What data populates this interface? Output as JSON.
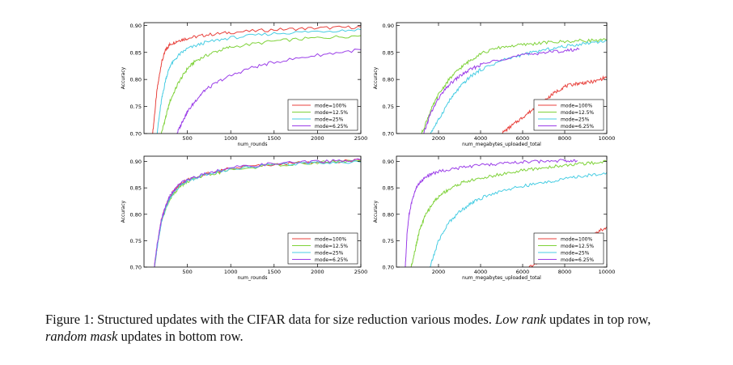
{
  "figure": {
    "caption_prefix": "Figure 1: Structured updates with the CIFAR data for size reduction various modes.",
    "caption_low_rank": "Low rank",
    "caption_mid": "updates in top row,",
    "caption_random_mask": "random mask",
    "caption_suffix": "updates in bottom row."
  },
  "chart_data": [
    {
      "type": "line",
      "xlabel": "num_rounds",
      "ylabel": "Accuracy",
      "xlim": [
        0,
        2500
      ],
      "ylim": [
        0.7,
        0.905
      ],
      "xticks": [
        500,
        1000,
        1500,
        2000,
        2500
      ],
      "yticks": [
        0.7,
        0.75,
        0.8,
        0.85,
        0.9
      ],
      "ytick_labels": [
        "0.70",
        "0.75",
        "0.80",
        "0.85",
        "0.90"
      ],
      "legend_position": "lower-right",
      "series": [
        {
          "name": "mode=100%",
          "color": "#e8423d",
          "x": [
            100,
            150,
            200,
            250,
            300,
            400,
            500,
            700,
            1000,
            1500,
            2000,
            2500
          ],
          "y": [
            0.7,
            0.78,
            0.83,
            0.855,
            0.865,
            0.872,
            0.876,
            0.882,
            0.887,
            0.892,
            0.895,
            0.897
          ]
        },
        {
          "name": "mode=12.5%",
          "color": "#7fd23a",
          "x": [
            200,
            250,
            300,
            400,
            500,
            600,
            800,
            1000,
            1500,
            2000,
            2500
          ],
          "y": [
            0.7,
            0.73,
            0.76,
            0.795,
            0.82,
            0.835,
            0.85,
            0.86,
            0.871,
            0.877,
            0.881
          ]
        },
        {
          "name": "mode=25%",
          "color": "#48cde3",
          "x": [
            150,
            200,
            250,
            300,
            400,
            500,
            700,
            1000,
            1500,
            2000,
            2500
          ],
          "y": [
            0.7,
            0.76,
            0.8,
            0.825,
            0.845,
            0.857,
            0.868,
            0.877,
            0.885,
            0.889,
            0.892
          ]
        },
        {
          "name": "mode=6.25%",
          "color": "#9b3ee8",
          "x": [
            380,
            450,
            500,
            600,
            700,
            900,
            1200,
            1500,
            2000,
            2500
          ],
          "y": [
            0.7,
            0.725,
            0.74,
            0.762,
            0.78,
            0.8,
            0.82,
            0.832,
            0.845,
            0.855
          ]
        }
      ]
    },
    {
      "type": "line",
      "xlabel": "num_megabytes_uploaded_total",
      "ylabel": "Accuracy",
      "xlim": [
        0,
        10000
      ],
      "ylim": [
        0.7,
        0.905
      ],
      "xticks": [
        2000,
        4000,
        6000,
        8000,
        10000
      ],
      "yticks": [
        0.7,
        0.75,
        0.8,
        0.85,
        0.9
      ],
      "ytick_labels": [
        "0.70",
        "0.75",
        "0.80",
        "0.85",
        "0.90"
      ],
      "legend_position": "lower-right",
      "series": [
        {
          "name": "mode=100%",
          "color": "#e8423d",
          "x": [
            5000,
            5500,
            6000,
            6500,
            7000,
            7500,
            8000,
            8500,
            9000,
            9500,
            10000
          ],
          "y": [
            0.7,
            0.715,
            0.73,
            0.745,
            0.76,
            0.775,
            0.787,
            0.792,
            0.794,
            0.797,
            0.805
          ]
        },
        {
          "name": "mode=12.5%",
          "color": "#7fd23a",
          "x": [
            1200,
            1600,
            2000,
            2500,
            3000,
            3500,
            4000,
            5000,
            6000,
            7000,
            8000,
            9000,
            10000
          ],
          "y": [
            0.7,
            0.74,
            0.772,
            0.8,
            0.82,
            0.835,
            0.848,
            0.86,
            0.864,
            0.868,
            0.87,
            0.872,
            0.873
          ]
        },
        {
          "name": "mode=25%",
          "color": "#48cde3",
          "x": [
            1600,
            2000,
            2500,
            3000,
            3500,
            4000,
            5000,
            6000,
            7000,
            8000,
            9000,
            10000
          ],
          "y": [
            0.7,
            0.725,
            0.76,
            0.785,
            0.805,
            0.818,
            0.835,
            0.846,
            0.854,
            0.861,
            0.867,
            0.872
          ]
        },
        {
          "name": "mode=6.25%",
          "color": "#9b3ee8",
          "x": [
            1300,
            1600,
            2000,
            2500,
            3000,
            3500,
            4000,
            5000,
            6000,
            7000,
            8000,
            8700
          ],
          "y": [
            0.7,
            0.735,
            0.765,
            0.79,
            0.806,
            0.818,
            0.827,
            0.838,
            0.845,
            0.85,
            0.853,
            0.856
          ]
        }
      ]
    },
    {
      "type": "line",
      "xlabel": "num_rounds",
      "ylabel": "Accuracy",
      "xlim": [
        0,
        2500
      ],
      "ylim": [
        0.7,
        0.91
      ],
      "xticks": [
        500,
        1000,
        1500,
        2000,
        2500
      ],
      "yticks": [
        0.7,
        0.75,
        0.8,
        0.85,
        0.9
      ],
      "ytick_labels": [
        "0.70",
        "0.75",
        "0.80",
        "0.85",
        "0.90"
      ],
      "legend_position": "lower-right",
      "series": [
        {
          "name": "mode=100%",
          "color": "#e8423d",
          "x": [
            120,
            150,
            200,
            250,
            300,
            400,
            500,
            700,
            1000,
            1500,
            2000,
            2500
          ],
          "y": [
            0.7,
            0.74,
            0.79,
            0.815,
            0.835,
            0.855,
            0.865,
            0.876,
            0.887,
            0.895,
            0.899,
            0.902
          ]
        },
        {
          "name": "mode=12.5%",
          "color": "#7fd23a",
          "x": [
            120,
            150,
            200,
            250,
            300,
            400,
            500,
            700,
            1000,
            1500,
            2000,
            2500
          ],
          "y": [
            0.7,
            0.735,
            0.785,
            0.81,
            0.83,
            0.85,
            0.862,
            0.873,
            0.884,
            0.893,
            0.898,
            0.902
          ]
        },
        {
          "name": "mode=25%",
          "color": "#48cde3",
          "x": [
            120,
            150,
            200,
            250,
            300,
            400,
            500,
            700,
            1000,
            1500,
            2000,
            2500
          ],
          "y": [
            0.7,
            0.735,
            0.785,
            0.812,
            0.832,
            0.852,
            0.863,
            0.875,
            0.886,
            0.894,
            0.898,
            0.899
          ]
        },
        {
          "name": "mode=6.25%",
          "color": "#9b3ee8",
          "x": [
            120,
            150,
            200,
            250,
            300,
            400,
            500,
            700,
            1000,
            1500,
            2000,
            2500
          ],
          "y": [
            0.7,
            0.74,
            0.79,
            0.815,
            0.835,
            0.856,
            0.866,
            0.877,
            0.888,
            0.896,
            0.9,
            0.903
          ]
        }
      ]
    },
    {
      "type": "line",
      "xlabel": "num_megabytes_uploaded_total",
      "ylabel": "Accuracy",
      "xlim": [
        0,
        10000
      ],
      "ylim": [
        0.7,
        0.91
      ],
      "xticks": [
        2000,
        4000,
        6000,
        8000,
        10000
      ],
      "yticks": [
        0.7,
        0.75,
        0.8,
        0.85,
        0.9
      ],
      "ytick_labels": [
        "0.70",
        "0.75",
        "0.80",
        "0.85",
        "0.90"
      ],
      "legend_position": "lower-right",
      "series": [
        {
          "name": "mode=100%",
          "color": "#e8423d",
          "x": [
            6300,
            7000,
            7500,
            8000,
            8500,
            9000,
            9500,
            10000
          ],
          "y": [
            0.7,
            0.712,
            0.722,
            0.733,
            0.745,
            0.755,
            0.765,
            0.776
          ]
        },
        {
          "name": "mode=12.5%",
          "color": "#7fd23a",
          "x": [
            700,
            900,
            1100,
            1400,
            1800,
            2200,
            2700,
            3200,
            4000,
            5000,
            6000,
            7000,
            8000,
            9000,
            10000
          ],
          "y": [
            0.7,
            0.735,
            0.77,
            0.8,
            0.825,
            0.84,
            0.852,
            0.861,
            0.868,
            0.876,
            0.883,
            0.888,
            0.893,
            0.896,
            0.9
          ]
        },
        {
          "name": "mode=25%",
          "color": "#48cde3",
          "x": [
            1600,
            2000,
            2500,
            3000,
            3500,
            4000,
            5000,
            6000,
            7000,
            8000,
            9000,
            10000
          ],
          "y": [
            0.7,
            0.75,
            0.785,
            0.805,
            0.82,
            0.83,
            0.845,
            0.853,
            0.86,
            0.867,
            0.873,
            0.879
          ]
        },
        {
          "name": "mode=6.25%",
          "color": "#9b3ee8",
          "x": [
            420,
            500,
            600,
            800,
            1000,
            1300,
            1700,
            2200,
            3000,
            4000,
            5000,
            6000,
            7000,
            8000,
            8600
          ],
          "y": [
            0.7,
            0.76,
            0.8,
            0.835,
            0.855,
            0.868,
            0.877,
            0.883,
            0.888,
            0.893,
            0.896,
            0.899,
            0.9,
            0.902,
            0.902
          ]
        }
      ]
    }
  ]
}
